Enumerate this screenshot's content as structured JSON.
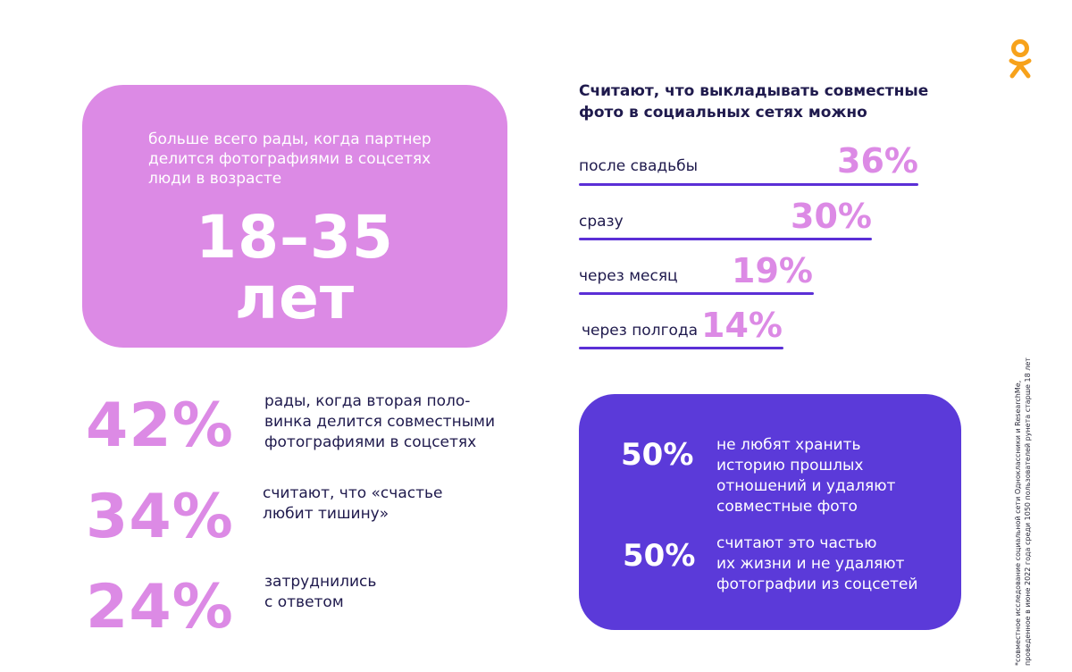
{
  "brand": {
    "logo_icon": "odnoklassniki-logo-icon",
    "logo_color": "#f7a21b"
  },
  "colors": {
    "pink": "#dc8ae5",
    "purple": "#5b3ad9",
    "bar": "#5b2fd6",
    "text": "#1f1a4d"
  },
  "pink_card": {
    "caption_lines": [
      "больше всего рады, когда партнер",
      "делится фотографиями в соцсетях",
      "люди в возрасте"
    ],
    "age_line1": "18–35",
    "age_line2": "лет"
  },
  "timing": {
    "title_lines": [
      "Считают, что выкладывать совместные",
      "фото в социальных сетях можно"
    ],
    "items": [
      {
        "label": "после свадьбы",
        "value": "36%",
        "percent": 36
      },
      {
        "label": "сразу",
        "value": "30%",
        "percent": 30
      },
      {
        "label": "через месяц",
        "value": "19%",
        "percent": 19
      },
      {
        "label": "через полгода",
        "value": "14%",
        "percent": 14
      }
    ]
  },
  "stats": [
    {
      "value": "42%",
      "text_lines": [
        "рады, когда вторая поло-",
        "винка делится совместными",
        "фотографиями в соцсетях"
      ]
    },
    {
      "value": "34%",
      "text_lines": [
        "считают, что «счастье",
        "любит тишину»"
      ]
    },
    {
      "value": "24%",
      "text_lines": [
        "затруднились",
        "с ответом"
      ]
    }
  ],
  "purple_card": {
    "items": [
      {
        "value": "50%",
        "text_lines": [
          "не любят хранить",
          "историю прошлых",
          "отношений и удаляют",
          "совместные фото"
        ]
      },
      {
        "value": "50%",
        "text_lines": [
          "считают это частью",
          "их жизни и не удаляют",
          "фотографии из соцсетей"
        ]
      }
    ]
  },
  "footnote_lines": [
    "*совместное исследование социальной сети Одноклассники и ResearchMe,",
    "проведенное в июне 2022 года среди 1050 пользователей рунета старше 18 лет"
  ]
}
